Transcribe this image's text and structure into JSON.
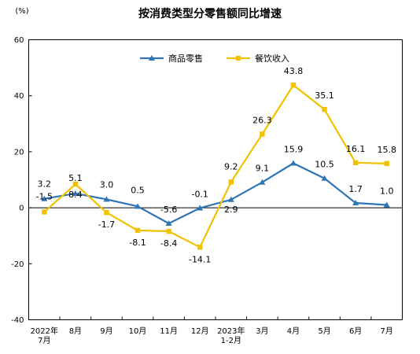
{
  "chart_data": {
    "type": "line",
    "title": "按消费类型分零售额同比增速",
    "unit": "(%)",
    "y_ticks": [
      "60",
      "40",
      "20",
      "0",
      "-20",
      "-40"
    ],
    "ylim": [
      -40,
      60
    ],
    "grid": false,
    "legend_position": "top-center",
    "categories": [
      [
        "2022年",
        "7月"
      ],
      [
        "8月"
      ],
      [
        "9月"
      ],
      [
        "10月"
      ],
      [
        "11月"
      ],
      [
        "12月"
      ],
      [
        "2023年",
        "1-2月"
      ],
      [
        "3月"
      ],
      [
        "4月"
      ],
      [
        "5月"
      ],
      [
        "6月"
      ],
      [
        "7月"
      ]
    ],
    "series": [
      {
        "name": "商品零售",
        "color": "#2e75b6",
        "marker": "triangle",
        "values": [
          3.2,
          5.1,
          3.0,
          0.5,
          -5.6,
          -0.1,
          2.9,
          9.1,
          15.9,
          10.5,
          1.7,
          1.0
        ],
        "labels": [
          "3.2",
          "5.1",
          "3.0",
          "0.5",
          "-5.6",
          "-0.1",
          "2.9",
          "9.1",
          "15.9",
          "10.5",
          "1.7",
          "1.0"
        ]
      },
      {
        "name": "餐饮收入",
        "color": "#f2c200",
        "marker": "square",
        "values": [
          -1.5,
          8.4,
          -1.7,
          -8.1,
          -8.4,
          -14.1,
          9.2,
          26.3,
          43.8,
          35.1,
          16.1,
          15.8
        ],
        "labels": [
          "-1.5",
          "8.4",
          "-1.7",
          "-8.1",
          "-8.4",
          "-14.1",
          "9.2",
          "26.3",
          "43.8",
          "35.1",
          "16.1",
          "15.8"
        ]
      }
    ]
  }
}
